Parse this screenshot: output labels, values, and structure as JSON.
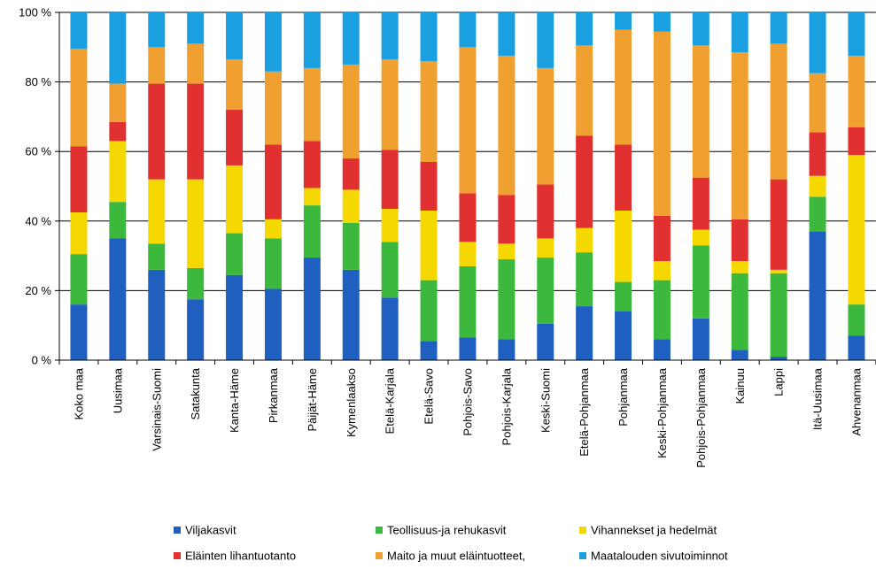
{
  "chart_data": {
    "type": "bar",
    "stacked": true,
    "percent": true,
    "title": "",
    "xlabel": "",
    "ylabel": "",
    "ylim": [
      0,
      100
    ],
    "yticks": [
      "0 %",
      "20 %",
      "40 %",
      "60 %",
      "80 %",
      "100 %"
    ],
    "grid": true,
    "legend_position": "bottom",
    "categories": [
      "Koko maa",
      "Uusimaa",
      "Varsinais-Suomi",
      "Satakunta",
      "Kanta-Häme",
      "Pirkanmaa",
      "Päijät-Häme",
      "Kymenlaakso",
      "Etelä-Karjala",
      "Etelä-Savo",
      "Pohjois-Savo",
      "Pohjois-Karjala",
      "Keski-Suomi",
      "Etelä-Pohjanmaa",
      "Pohjanmaa",
      "Keski-Pohjanmaa",
      "Pohjois-Pohjanmaa",
      "Kainuu",
      "Lappi",
      "Itä-Uusimaa",
      "Ahvenanmaa"
    ],
    "series": [
      {
        "name": "Viljakasvit",
        "color": "#1f5fbf",
        "values": [
          16,
          35,
          26,
          17.5,
          24.5,
          20.5,
          29.5,
          26,
          18,
          5.5,
          6.5,
          6,
          10.5,
          15.5,
          14,
          6,
          12,
          3,
          1,
          37,
          7
        ]
      },
      {
        "name": "Teollisuus-ja rehukasvit",
        "color": "#3cb83c",
        "values": [
          14.5,
          10.5,
          7.5,
          9,
          12,
          14.5,
          15,
          13.5,
          16,
          17.5,
          20.5,
          23,
          19,
          15.5,
          8.5,
          17,
          21,
          22,
          24,
          10,
          9
        ]
      },
      {
        "name": "Vihannekset ja hedelmät",
        "color": "#f5d800",
        "values": [
          12,
          17.5,
          18.5,
          25.5,
          19.5,
          5.5,
          5,
          9.5,
          9.5,
          20,
          7,
          4.5,
          5.5,
          7,
          20.5,
          5.5,
          4.5,
          3.5,
          1,
          6,
          43
        ]
      },
      {
        "name": "Eläinten lihantuotanto",
        "color": "#e03030",
        "values": [
          19,
          5.5,
          27.5,
          27.5,
          16,
          21.5,
          13.5,
          9,
          17,
          14,
          14,
          14,
          15.5,
          26.5,
          19,
          13,
          15,
          12,
          26,
          12.5,
          8
        ]
      },
      {
        "name": "Maito ja muut eläintuotteet,",
        "color": "#f0a030",
        "values": [
          28,
          11,
          10.5,
          11.5,
          14.5,
          21,
          21,
          27,
          26,
          29,
          42,
          40,
          33.5,
          26,
          33,
          53,
          38,
          48,
          39,
          17,
          20.5
        ]
      },
      {
        "name": "Maatalouden sivutoiminnot",
        "color": "#1aa0e0",
        "values": [
          10.5,
          20.5,
          10,
          9,
          13.5,
          17,
          16,
          15,
          13.5,
          14,
          10,
          12.5,
          16,
          9.5,
          5,
          5.5,
          9.5,
          11.5,
          9,
          17.5,
          12.5
        ]
      }
    ]
  }
}
